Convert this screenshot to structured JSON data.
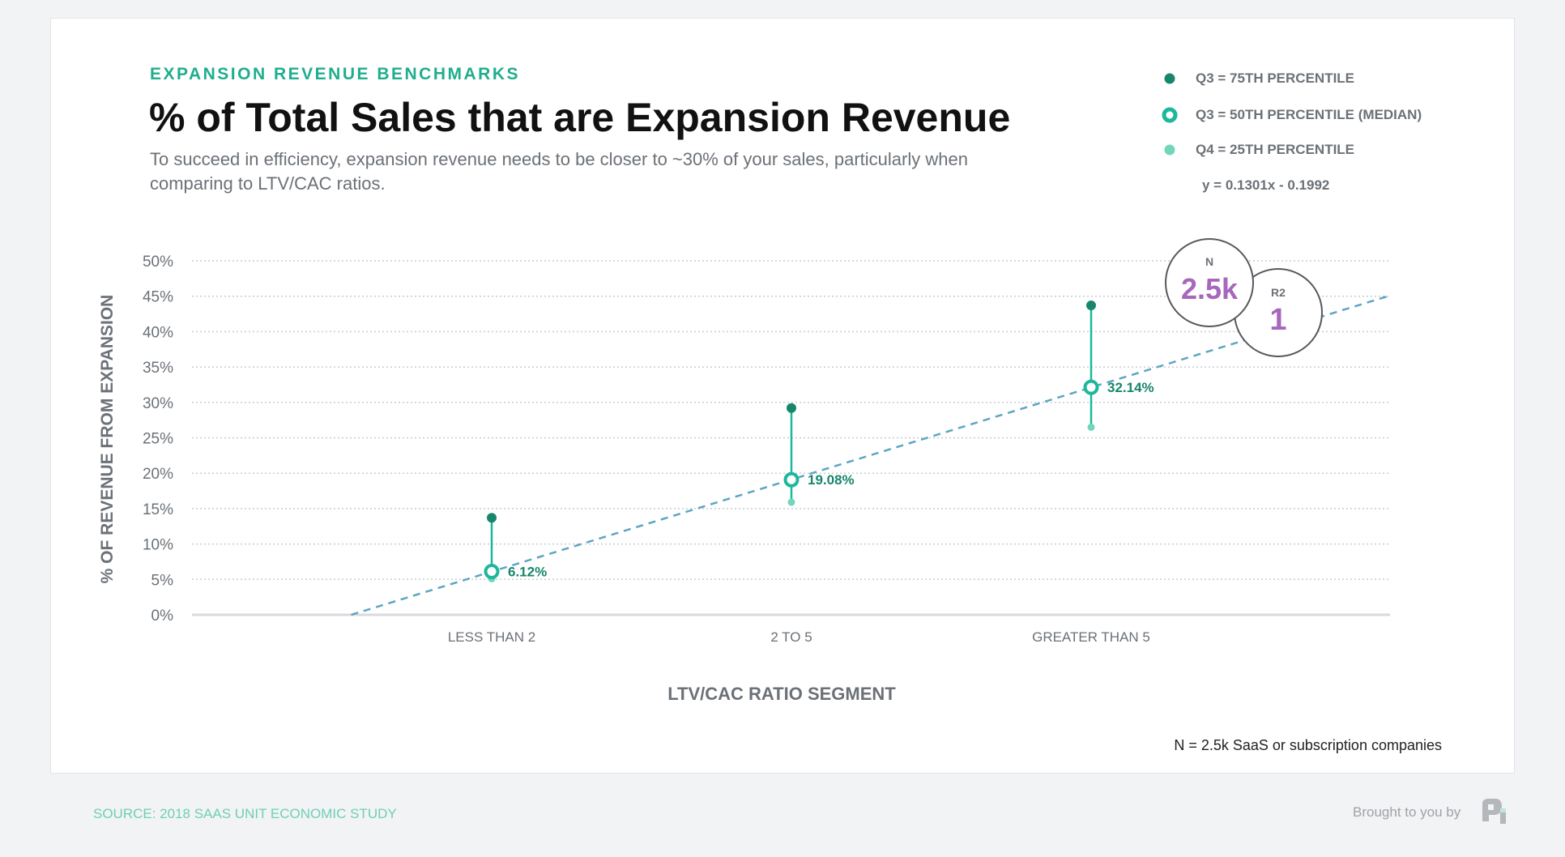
{
  "kicker": "EXPANSION REVENUE BENCHMARKS",
  "title": "% of Total Sales that are Expansion Revenue",
  "description": "To succeed in efficiency, expansion revenue needs to be closer to ~30% of your sales, particularly when comparing to LTV/CAC ratios.",
  "legend": [
    {
      "label": "Q3 = 75TH PERCENTILE",
      "marker": "filled-dot",
      "color": "#17866c"
    },
    {
      "label": "Q3 = 50TH PERCENTILE (MEDIAN)",
      "marker": "ring",
      "color": "#1cb89b"
    },
    {
      "label": "Q4 = 25TH PERCENTILE",
      "marker": "filled-dot",
      "color": "#72d6b9"
    }
  ],
  "equation": "y = 0.1301x - 0.1992",
  "stats": {
    "n_label": "N",
    "n_value": "2.5k",
    "r2_label": "R2",
    "r2_value": "1",
    "value_color": "#a667bd"
  },
  "footnote": "N = 2.5k SaaS or subscription companies",
  "source": "SOURCE: 2018 SAAS UNIT ECONOMIC STUDY",
  "brought_by": "Brought to you by",
  "chart_data": {
    "type": "scatter",
    "xlabel": "LTV/CAC RATIO SEGMENT",
    "ylabel": "% OF REVENUE FROM EXPANSION",
    "categories": [
      "LESS THAN 2",
      "2 TO 5",
      "GREATER THAN 5"
    ],
    "yticks": [
      "0%",
      "5%",
      "10%",
      "15%",
      "20%",
      "25%",
      "30%",
      "35%",
      "40%",
      "45%",
      "50%"
    ],
    "ylim": [
      0,
      50
    ],
    "grid": true,
    "series": [
      {
        "name": "Q3 = 75TH PERCENTILE",
        "values": [
          13.7,
          29.2,
          43.7
        ]
      },
      {
        "name": "Q3 = 50TH PERCENTILE (MEDIAN)",
        "values": [
          6.12,
          19.08,
          32.14
        ],
        "labels": [
          "6.12%",
          "19.08%",
          "32.14%"
        ]
      },
      {
        "name": "Q4 = 25TH PERCENTILE",
        "values": [
          5.1,
          15.9,
          26.5
        ]
      }
    ],
    "trendline": {
      "slope": 0.1301,
      "intercept": -0.1992,
      "style": "dashed",
      "color": "#5fa5c2"
    },
    "legend_position": "top-right"
  }
}
